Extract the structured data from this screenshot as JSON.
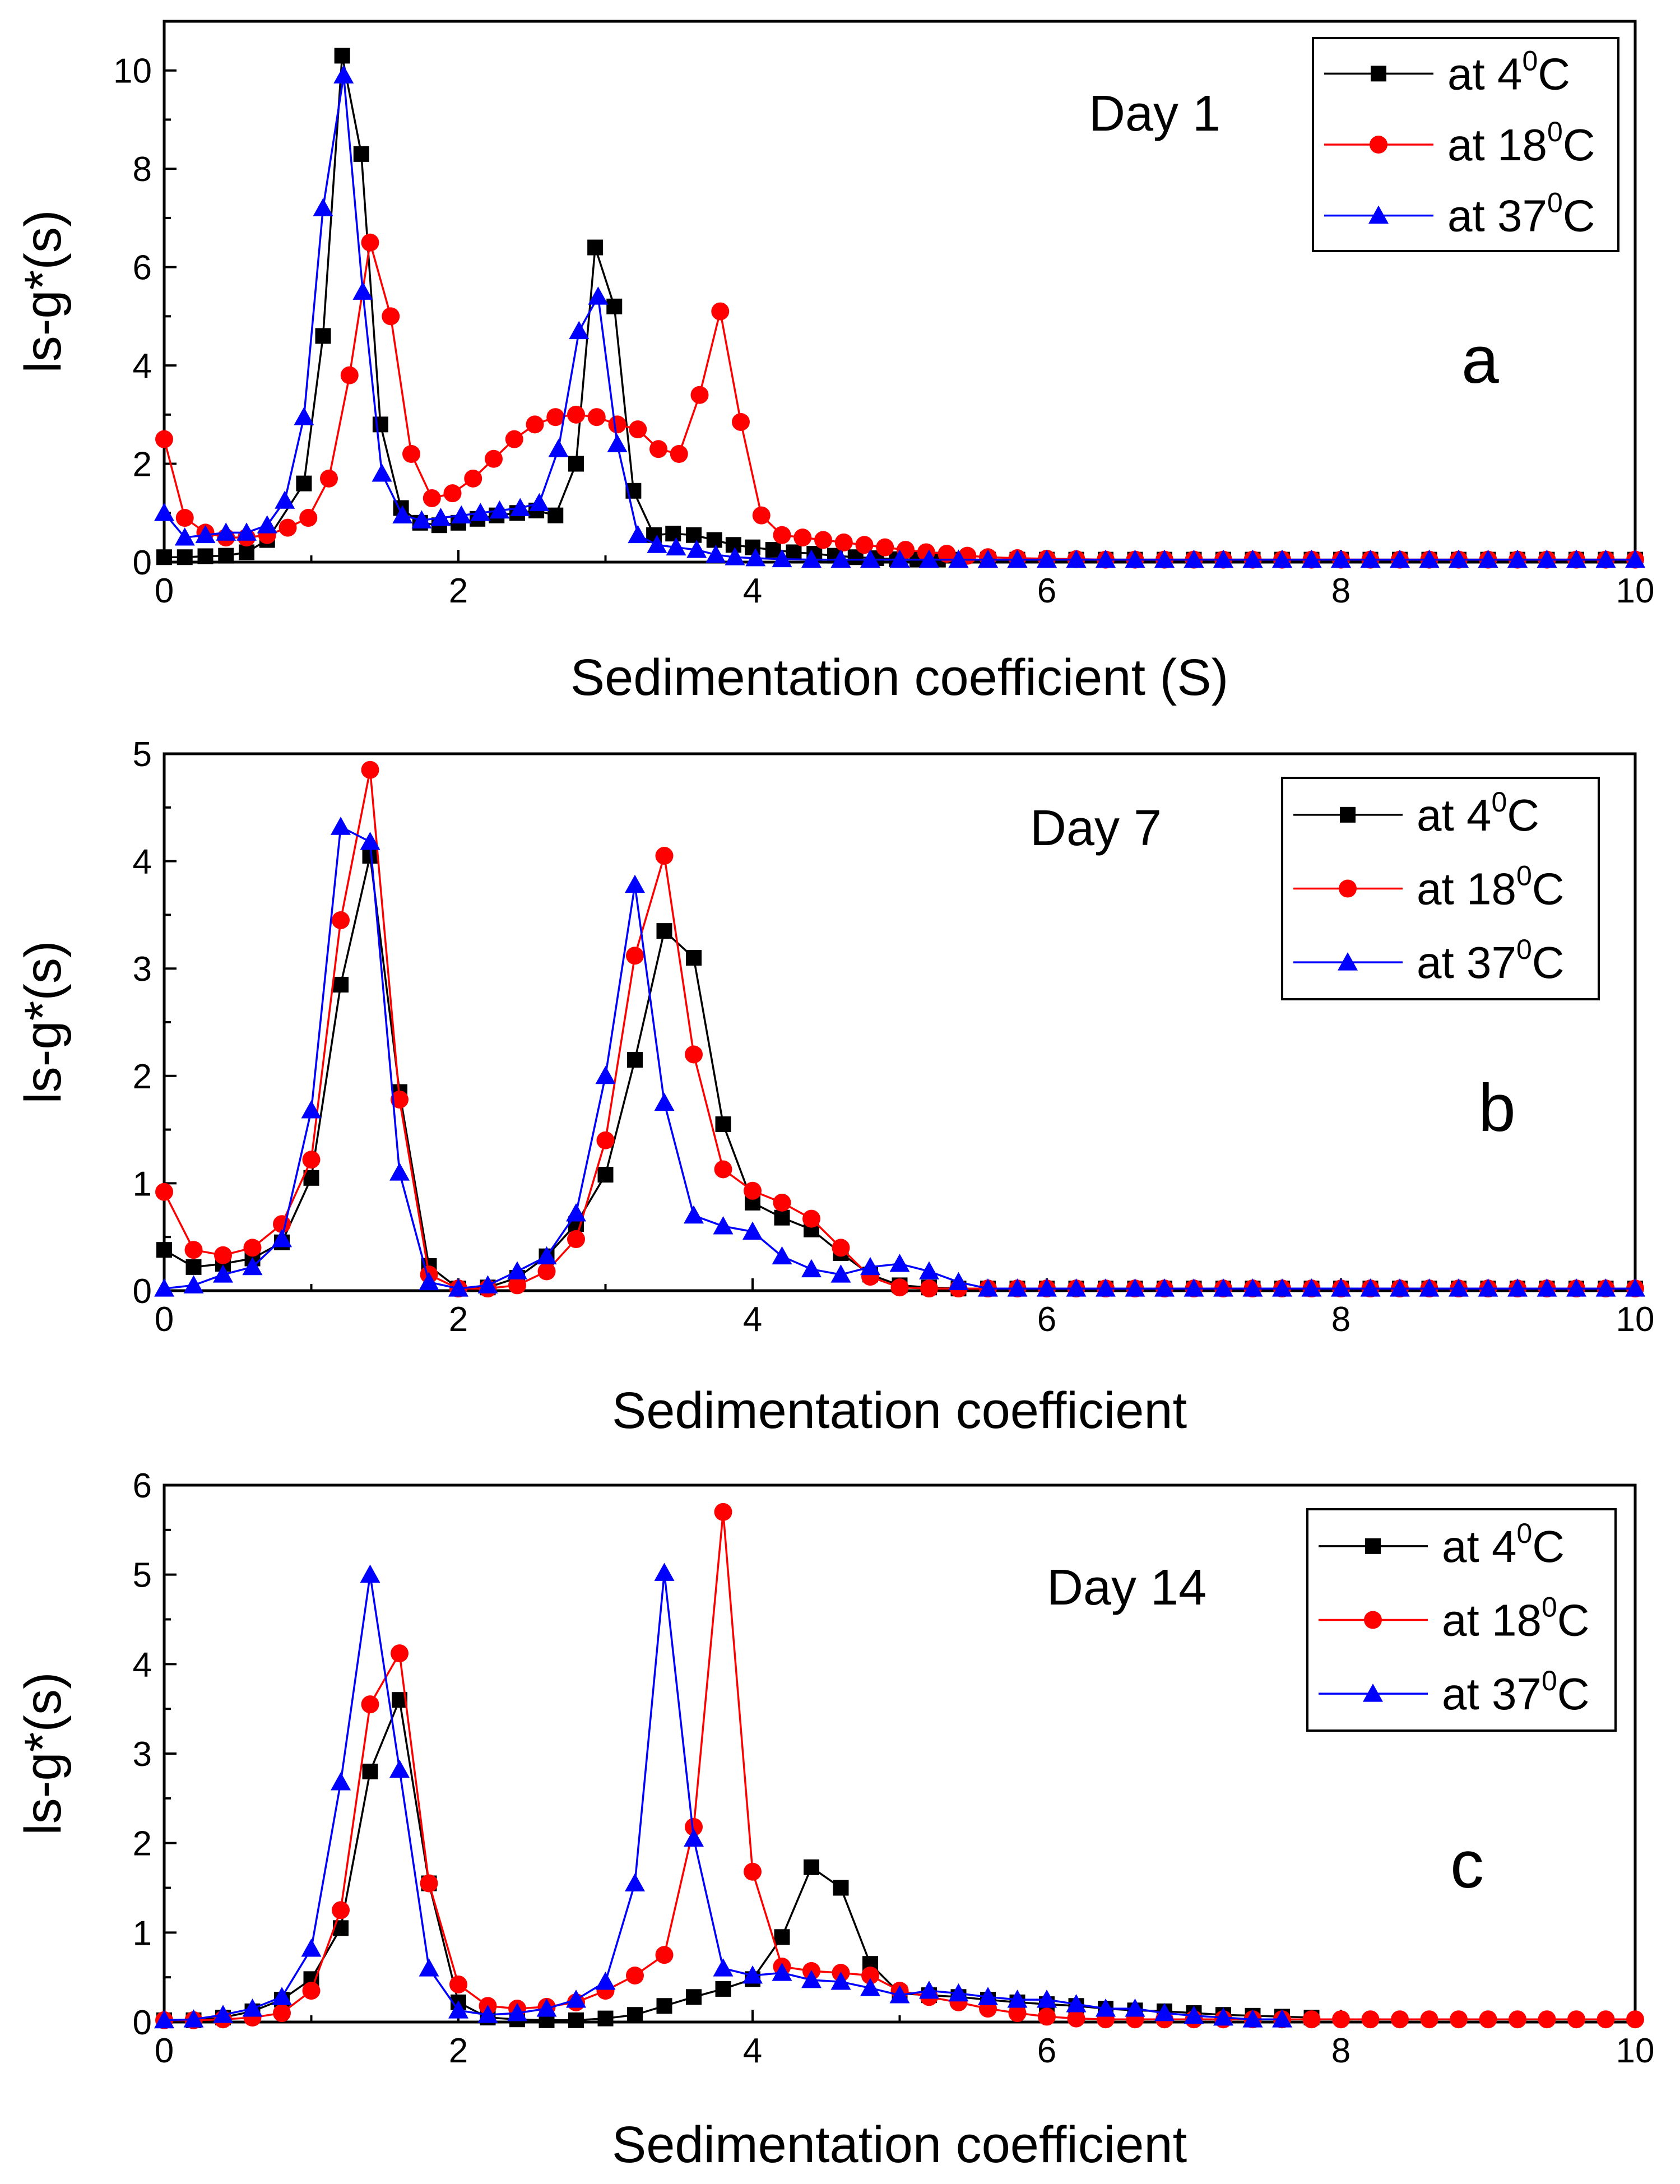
{
  "chart_data": [
    {
      "id": "a",
      "type": "line",
      "title": "Day 1",
      "panel_label": "a",
      "xlabel": "Sedimentation coefficient (S)",
      "ylabel": "ls-g*(s)",
      "xlim": [
        0,
        10
      ],
      "ylim": [
        0,
        11
      ],
      "xticks": [
        0,
        2,
        4,
        6,
        8,
        10
      ],
      "yticks": [
        0,
        2,
        4,
        6,
        8,
        10
      ],
      "legend_position": "top-right",
      "series": [
        {
          "name": "at 4",
          "sup": "0",
          "unit": "C",
          "color": "#000000",
          "marker": "square",
          "x": [
            0.0,
            0.14,
            0.28,
            0.42,
            0.56,
            0.7,
            0.95,
            1.08,
            1.21,
            1.34,
            1.47,
            1.61,
            1.74,
            1.87,
            2.0,
            2.13,
            2.26,
            2.4,
            2.53,
            2.66,
            2.8,
            2.93,
            3.06,
            3.19,
            3.33,
            3.46,
            3.6,
            3.74,
            3.87,
            4.0,
            4.14,
            4.28,
            4.42,
            4.56,
            4.7,
            4.84,
            4.98,
            5.12,
            5.26,
            5.4,
            5.6,
            5.8,
            6.0,
            6.2,
            6.4,
            6.6,
            6.8,
            7.0,
            7.2,
            7.4,
            7.6,
            7.8,
            8.0,
            8.2,
            8.4,
            8.6,
            8.8,
            9.0,
            9.2,
            9.4,
            9.6,
            9.8,
            10.0
          ],
          "y": [
            0.1,
            0.1,
            0.12,
            0.13,
            0.2,
            0.45,
            1.6,
            4.6,
            10.3,
            8.3,
            2.8,
            1.1,
            0.8,
            0.75,
            0.8,
            0.88,
            0.95,
            1.0,
            1.05,
            0.95,
            2.0,
            6.4,
            5.2,
            1.45,
            0.55,
            0.58,
            0.55,
            0.45,
            0.35,
            0.3,
            0.25,
            0.2,
            0.17,
            0.13,
            0.1,
            0.08,
            0.06,
            0.05,
            0.05,
            0.05,
            0.05,
            0.05,
            0.05,
            0.05,
            0.05,
            0.05,
            0.05,
            0.05,
            0.05,
            0.05,
            0.05,
            0.05,
            0.05,
            0.05,
            0.05,
            0.05,
            0.05,
            0.05,
            0.05,
            0.05,
            0.05,
            0.05,
            0.05
          ]
        },
        {
          "name": "at 18",
          "sup": "0",
          "unit": "C",
          "color": "#ff0000",
          "marker": "circle",
          "x": [
            0.0,
            0.14,
            0.28,
            0.42,
            0.56,
            0.7,
            0.84,
            0.98,
            1.12,
            1.26,
            1.4,
            1.54,
            1.68,
            1.82,
            1.96,
            2.1,
            2.24,
            2.38,
            2.52,
            2.66,
            2.8,
            2.94,
            3.08,
            3.22,
            3.36,
            3.5,
            3.64,
            3.78,
            3.92,
            4.06,
            4.2,
            4.34,
            4.48,
            4.62,
            4.76,
            4.9,
            5.04,
            5.18,
            5.32,
            5.46,
            5.6,
            5.8,
            6.0,
            6.2,
            6.4,
            6.6,
            6.8,
            7.0,
            7.2,
            7.4,
            7.6,
            7.8,
            8.0,
            8.2,
            8.4,
            8.6,
            8.8,
            9.0,
            9.2,
            9.4,
            9.6,
            9.8,
            10.0
          ],
          "y": [
            2.5,
            0.9,
            0.6,
            0.5,
            0.5,
            0.55,
            0.7,
            0.9,
            1.7,
            3.8,
            6.5,
            5.0,
            2.2,
            1.3,
            1.4,
            1.7,
            2.1,
            2.5,
            2.8,
            2.95,
            3.0,
            2.95,
            2.8,
            2.7,
            2.3,
            2.2,
            3.4,
            5.1,
            2.85,
            0.95,
            0.55,
            0.5,
            0.45,
            0.4,
            0.35,
            0.3,
            0.25,
            0.2,
            0.17,
            0.13,
            0.1,
            0.08,
            0.07,
            0.06,
            0.05,
            0.05,
            0.05,
            0.05,
            0.05,
            0.05,
            0.05,
            0.05,
            0.05,
            0.05,
            0.05,
            0.05,
            0.05,
            0.05,
            0.05,
            0.05,
            0.05,
            0.05,
            0.05
          ]
        },
        {
          "name": "at 37",
          "sup": "0",
          "unit": "C",
          "color": "#0000ff",
          "marker": "triangle",
          "x": [
            0.0,
            0.14,
            0.28,
            0.42,
            0.56,
            0.7,
            0.82,
            0.95,
            1.08,
            1.22,
            1.35,
            1.48,
            1.62,
            1.75,
            1.88,
            2.02,
            2.15,
            2.28,
            2.42,
            2.55,
            2.68,
            2.82,
            2.95,
            3.08,
            3.22,
            3.35,
            3.48,
            3.62,
            3.75,
            3.88,
            4.02,
            4.2,
            4.4,
            4.6,
            4.8,
            5.0,
            5.2,
            5.4,
            5.6,
            5.8,
            6.0,
            6.2,
            6.4,
            6.6,
            6.8,
            7.0,
            7.2,
            7.4,
            7.6,
            7.8,
            8.0,
            8.2,
            8.4,
            8.6,
            8.8,
            9.0,
            9.2,
            9.4,
            9.6,
            9.8,
            10.0
          ],
          "y": [
            1.0,
            0.5,
            0.55,
            0.6,
            0.6,
            0.75,
            1.25,
            2.95,
            7.2,
            9.9,
            5.5,
            1.8,
            0.95,
            0.85,
            0.9,
            0.95,
            1.0,
            1.05,
            1.1,
            1.2,
            2.3,
            4.7,
            5.4,
            2.4,
            0.55,
            0.35,
            0.3,
            0.25,
            0.15,
            0.1,
            0.08,
            0.06,
            0.05,
            0.05,
            0.05,
            0.05,
            0.05,
            0.05,
            0.05,
            0.05,
            0.05,
            0.05,
            0.05,
            0.05,
            0.05,
            0.05,
            0.05,
            0.05,
            0.05,
            0.05,
            0.05,
            0.05,
            0.05,
            0.05,
            0.05,
            0.05,
            0.05,
            0.05,
            0.05,
            0.05,
            0.05
          ]
        }
      ]
    },
    {
      "id": "b",
      "type": "line",
      "title": "Day 7",
      "panel_label": "b",
      "xlabel": "Sedimentation coefficient",
      "ylabel": "ls-g*(s)",
      "xlim": [
        0,
        10
      ],
      "ylim": [
        0,
        5
      ],
      "xticks": [
        0,
        2,
        4,
        6,
        8,
        10
      ],
      "yticks": [
        0,
        1,
        2,
        3,
        4,
        5
      ],
      "legend_position": "top-right",
      "series": [
        {
          "name": "at 4",
          "sup": "0",
          "unit": "C",
          "color": "#000000",
          "marker": "square",
          "x": [
            0.0,
            0.2,
            0.4,
            0.6,
            0.8,
            1.0,
            1.2,
            1.4,
            1.6,
            1.8,
            2.0,
            2.2,
            2.4,
            2.6,
            2.8,
            3.0,
            3.2,
            3.4,
            3.6,
            3.8,
            4.0,
            4.2,
            4.4,
            4.6,
            4.8,
            5.0,
            5.2,
            5.4,
            5.6,
            5.8,
            6.0,
            6.2,
            6.4,
            6.6,
            6.8,
            7.0,
            7.2,
            7.4,
            7.6,
            7.8,
            8.0,
            8.2,
            8.4,
            8.6,
            8.8,
            9.0,
            9.2,
            9.4,
            9.6,
            9.8,
            10.0
          ],
          "y": [
            0.38,
            0.22,
            0.25,
            0.3,
            0.45,
            1.05,
            2.85,
            4.05,
            1.85,
            0.23,
            0.02,
            0.03,
            0.12,
            0.32,
            0.62,
            1.08,
            2.15,
            3.35,
            3.1,
            1.55,
            0.82,
            0.68,
            0.57,
            0.35,
            0.15,
            0.05,
            0.03,
            0.02,
            0.02,
            0.02,
            0.02,
            0.02,
            0.02,
            0.02,
            0.02,
            0.02,
            0.02,
            0.02,
            0.02,
            0.02,
            0.02,
            0.02,
            0.02,
            0.02,
            0.02,
            0.02,
            0.02,
            0.02,
            0.02,
            0.02,
            0.02
          ]
        },
        {
          "name": "at 18",
          "sup": "0",
          "unit": "C",
          "color": "#ff0000",
          "marker": "circle",
          "x": [
            0.0,
            0.2,
            0.4,
            0.6,
            0.8,
            1.0,
            1.2,
            1.4,
            1.6,
            1.8,
            2.0,
            2.2,
            2.4,
            2.6,
            2.8,
            3.0,
            3.2,
            3.4,
            3.6,
            3.8,
            4.0,
            4.2,
            4.4,
            4.6,
            4.8,
            5.0,
            5.2,
            5.4,
            5.6,
            5.8,
            6.0,
            6.2,
            6.4,
            6.6,
            6.8,
            7.0,
            7.2,
            7.4,
            7.6,
            7.8,
            8.0,
            8.2,
            8.4,
            8.6,
            8.8,
            9.0,
            9.2,
            9.4,
            9.6,
            9.8,
            10.0
          ],
          "y": [
            0.92,
            0.38,
            0.33,
            0.4,
            0.62,
            1.22,
            3.45,
            4.85,
            1.78,
            0.15,
            0.02,
            0.02,
            0.05,
            0.18,
            0.48,
            1.4,
            3.12,
            4.05,
            2.2,
            1.13,
            0.93,
            0.82,
            0.67,
            0.4,
            0.13,
            0.03,
            0.02,
            0.02,
            0.02,
            0.02,
            0.02,
            0.02,
            0.02,
            0.02,
            0.02,
            0.02,
            0.02,
            0.02,
            0.02,
            0.02,
            0.02,
            0.02,
            0.02,
            0.02,
            0.02,
            0.02,
            0.02,
            0.02,
            0.02,
            0.02,
            0.02
          ]
        },
        {
          "name": "at 37",
          "sup": "0",
          "unit": "C",
          "color": "#0000ff",
          "marker": "triangle",
          "x": [
            0.0,
            0.2,
            0.4,
            0.6,
            0.8,
            1.0,
            1.2,
            1.4,
            1.6,
            1.8,
            2.0,
            2.2,
            2.4,
            2.6,
            2.8,
            3.0,
            3.2,
            3.4,
            3.6,
            3.8,
            4.0,
            4.2,
            4.4,
            4.6,
            4.8,
            5.0,
            5.2,
            5.4,
            5.6,
            5.8,
            6.0,
            6.2,
            6.4,
            6.6,
            6.8,
            7.0,
            7.2,
            7.4,
            7.6,
            7.8,
            8.0,
            8.2,
            8.4,
            8.6,
            8.8,
            9.0,
            9.2,
            9.4,
            9.6,
            9.8,
            10.0
          ],
          "y": [
            0.02,
            0.05,
            0.15,
            0.22,
            0.48,
            1.68,
            4.32,
            4.18,
            1.1,
            0.08,
            0.02,
            0.05,
            0.18,
            0.32,
            0.72,
            2.0,
            3.78,
            1.75,
            0.7,
            0.6,
            0.55,
            0.32,
            0.2,
            0.15,
            0.22,
            0.25,
            0.18,
            0.08,
            0.02,
            0.02,
            0.02,
            0.02,
            0.02,
            0.02,
            0.02,
            0.02,
            0.02,
            0.02,
            0.02,
            0.02,
            0.02,
            0.02,
            0.02,
            0.02,
            0.02,
            0.02,
            0.02,
            0.02,
            0.02,
            0.02,
            0.02
          ]
        }
      ]
    },
    {
      "id": "c",
      "type": "line",
      "title": "Day 14",
      "panel_label": "c",
      "xlabel": "Sedimentation coefficient",
      "ylabel": "ls-g*(s)",
      "xlim": [
        0,
        10
      ],
      "ylim": [
        0,
        6
      ],
      "xticks": [
        0,
        2,
        4,
        6,
        8,
        10
      ],
      "yticks": [
        0,
        1,
        2,
        3,
        4,
        5,
        6
      ],
      "legend_position": "top-right",
      "series": [
        {
          "name": "at 4",
          "sup": "0",
          "unit": "C",
          "color": "#000000",
          "marker": "square",
          "x": [
            0.0,
            0.2,
            0.4,
            0.6,
            0.8,
            1.0,
            1.2,
            1.4,
            1.6,
            1.8,
            2.0,
            2.2,
            2.4,
            2.6,
            2.8,
            3.0,
            3.2,
            3.4,
            3.6,
            3.8,
            4.0,
            4.2,
            4.4,
            4.6,
            4.8,
            5.0,
            5.2,
            5.4,
            5.6,
            5.8,
            6.0,
            6.2,
            6.4,
            6.6,
            6.8,
            7.0,
            7.2,
            7.4,
            7.6,
            7.8
          ],
          "y": [
            0.02,
            0.02,
            0.05,
            0.12,
            0.25,
            0.48,
            1.05,
            2.8,
            3.6,
            1.55,
            0.22,
            0.05,
            0.03,
            0.02,
            0.02,
            0.04,
            0.08,
            0.18,
            0.28,
            0.37,
            0.48,
            0.95,
            1.73,
            1.5,
            0.65,
            0.32,
            0.3,
            0.28,
            0.25,
            0.22,
            0.2,
            0.18,
            0.15,
            0.13,
            0.12,
            0.1,
            0.08,
            0.07,
            0.06,
            0.05
          ]
        },
        {
          "name": "at 18",
          "sup": "0",
          "unit": "C",
          "color": "#ff0000",
          "marker": "circle",
          "x": [
            0.0,
            0.2,
            0.4,
            0.6,
            0.8,
            1.0,
            1.2,
            1.4,
            1.6,
            1.8,
            2.0,
            2.2,
            2.4,
            2.6,
            2.8,
            3.0,
            3.2,
            3.4,
            3.6,
            3.8,
            4.0,
            4.2,
            4.4,
            4.6,
            4.8,
            5.0,
            5.2,
            5.4,
            5.6,
            5.8,
            6.0,
            6.2,
            6.4,
            6.6,
            6.8,
            7.0,
            7.2,
            7.4,
            7.6,
            7.8,
            8.0,
            8.2,
            8.4,
            8.6,
            8.8,
            9.0,
            9.2,
            9.4,
            9.6,
            9.8,
            10.0
          ],
          "y": [
            0.02,
            0.02,
            0.03,
            0.05,
            0.1,
            0.35,
            1.25,
            3.55,
            4.12,
            1.55,
            0.42,
            0.18,
            0.15,
            0.17,
            0.22,
            0.35,
            0.52,
            0.75,
            2.18,
            5.7,
            1.68,
            0.62,
            0.57,
            0.55,
            0.52,
            0.35,
            0.28,
            0.22,
            0.15,
            0.1,
            0.06,
            0.04,
            0.03,
            0.03,
            0.03,
            0.03,
            0.03,
            0.03,
            0.03,
            0.03,
            0.03,
            0.03,
            0.03,
            0.03,
            0.03,
            0.03,
            0.03,
            0.03,
            0.03,
            0.03,
            0.03
          ]
        },
        {
          "name": "at 37",
          "sup": "0",
          "unit": "C",
          "color": "#0000ff",
          "marker": "triangle",
          "x": [
            0.0,
            0.2,
            0.4,
            0.6,
            0.8,
            1.0,
            1.2,
            1.4,
            1.6,
            1.8,
            2.0,
            2.2,
            2.4,
            2.6,
            2.8,
            3.0,
            3.2,
            3.4,
            3.6,
            3.8,
            4.0,
            4.2,
            4.4,
            4.6,
            4.8,
            5.0,
            5.2,
            5.4,
            5.6,
            5.8,
            6.0,
            6.2,
            6.4,
            6.6,
            6.8,
            7.0,
            7.2,
            7.4,
            7.6
          ],
          "y": [
            0.02,
            0.03,
            0.08,
            0.15,
            0.28,
            0.82,
            2.68,
            5.0,
            2.82,
            0.6,
            0.13,
            0.08,
            0.1,
            0.15,
            0.25,
            0.45,
            1.55,
            5.02,
            2.05,
            0.6,
            0.52,
            0.55,
            0.47,
            0.45,
            0.38,
            0.3,
            0.35,
            0.32,
            0.28,
            0.25,
            0.25,
            0.2,
            0.15,
            0.15,
            0.1,
            0.07,
            0.05,
            0.03,
            0.03
          ]
        }
      ]
    }
  ]
}
